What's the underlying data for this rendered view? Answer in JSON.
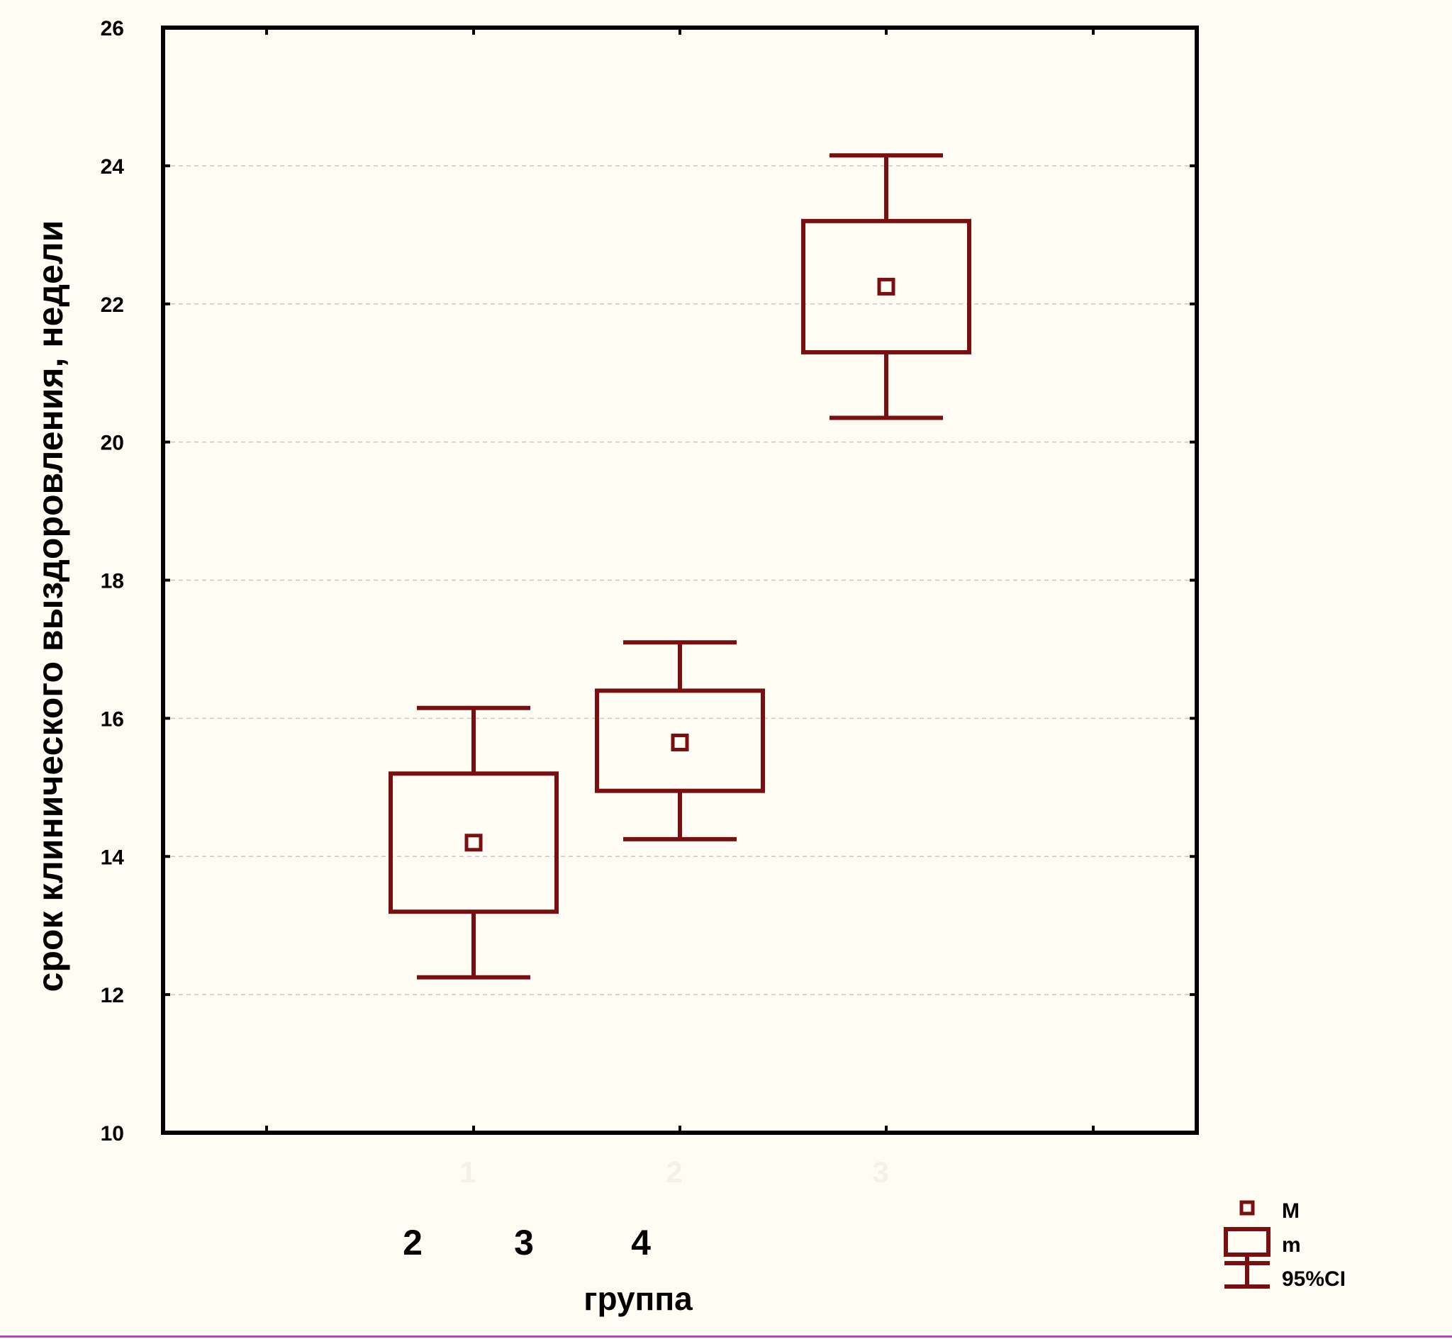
{
  "chart_data": {
    "type": "box",
    "ylabel": "срок клинического выздоровления, недели",
    "xlabel": "группа",
    "ylim": [
      10,
      26
    ],
    "yticks": [
      10,
      12,
      14,
      16,
      18,
      20,
      22,
      24,
      26
    ],
    "grid": true,
    "x_tick_labels": [
      "1",
      "2",
      "3"
    ],
    "x_extra_labels": [
      "2",
      "3",
      "4"
    ],
    "series": [
      {
        "category": "1",
        "mean": 14.2,
        "box_low": 13.2,
        "box_high": 15.2,
        "ci_low": 12.25,
        "ci_high": 16.15
      },
      {
        "category": "2",
        "mean": 15.65,
        "box_low": 14.95,
        "box_high": 16.4,
        "ci_low": 14.25,
        "ci_high": 17.1
      },
      {
        "category": "3",
        "mean": 22.25,
        "box_low": 21.3,
        "box_high": 23.2,
        "ci_low": 20.35,
        "ci_high": 24.15
      }
    ],
    "legend": {
      "position": "bottom-right",
      "entries": [
        "M",
        "m",
        "95%CI"
      ]
    },
    "colors": {
      "series": "#7a0f12",
      "axis": "#000000",
      "grid": "#c8c8c8",
      "background": "#fffdf3"
    }
  }
}
